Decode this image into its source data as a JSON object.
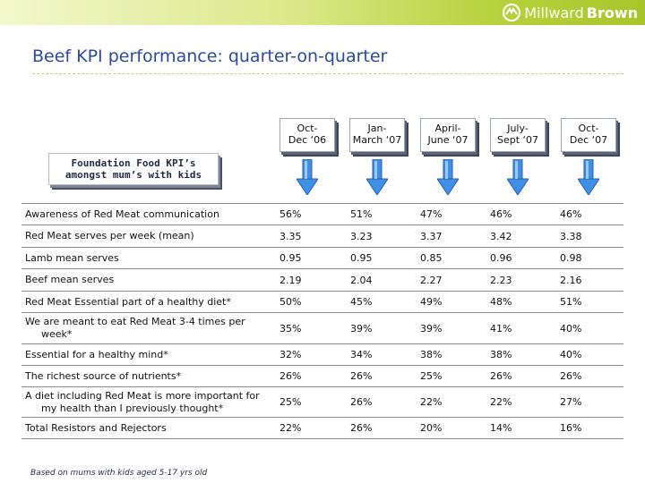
{
  "brand": {
    "logo_text_1": "Millward",
    "logo_text_2": "Brown",
    "band_color": "#b9d23f",
    "icon": "millward-brown-logo-icon"
  },
  "title": "Beef KPI performance: quarter-on-quarter",
  "title_color": "#2a4aa0",
  "kpi_label": "Foundation Food KPI’s\namongst mum’s with kids",
  "periods": [
    "Oct-\nDec ‘06",
    "Jan-\nMarch ‘07",
    "April-\nJune ‘07",
    "July-\nSept ‘07",
    "Oct-\nDec ‘07"
  ],
  "arrow_color": "#3f8fe6",
  "arrow_icon": "down-arrow-icon",
  "table": {
    "rows": [
      {
        "label": "Awareness of Red Meat communication",
        "values": [
          "56%",
          "51%",
          "47%",
          "46%",
          "46%"
        ]
      },
      {
        "label": "Red Meat serves per week (mean)",
        "values": [
          "3.35",
          "3.23",
          "3.37",
          "3.42",
          "3.38"
        ]
      },
      {
        "label": "Lamb mean serves",
        "values": [
          "0.95",
          "0.95",
          "0.85",
          "0.96",
          "0.98"
        ]
      },
      {
        "label": "Beef mean serves",
        "values": [
          "2.19",
          "2.04",
          "2.27",
          "2.23",
          "2.16"
        ]
      },
      {
        "label": "Red Meat Essential part of a healthy diet*",
        "values": [
          "50%",
          "45%",
          "49%",
          "48%",
          "51%"
        ]
      },
      {
        "label": "We are meant to eat Red Meat 3-4 times per week*",
        "values": [
          "35%",
          "39%",
          "39%",
          "41%",
          "40%"
        ]
      },
      {
        "label": "Essential for a healthy mind*",
        "values": [
          "32%",
          "34%",
          "38%",
          "38%",
          "40%"
        ]
      },
      {
        "label": "The richest source of nutrients*",
        "values": [
          "26%",
          "26%",
          "25%",
          "26%",
          "26%"
        ]
      },
      {
        "label": "A diet including Red Meat is more important for my health than I previously thought*",
        "values": [
          "25%",
          "26%",
          "22%",
          "22%",
          "27%"
        ]
      },
      {
        "label": "Total Resistors and Rejectors",
        "values": [
          "22%",
          "26%",
          "20%",
          "14%",
          "16%"
        ]
      }
    ]
  },
  "footnote": "Based on mums with kids aged 5-17 yrs old"
}
